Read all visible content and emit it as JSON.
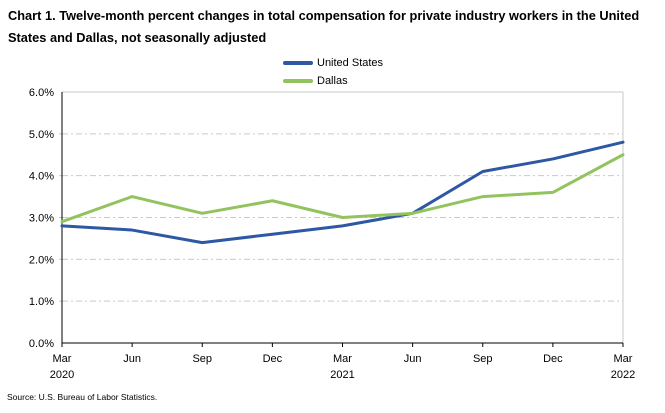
{
  "page": {
    "title": "Chart 1. Twelve-month percent changes in total compensation for private industry workers in the United States and Dallas, not seasonally adjusted",
    "source": "Source: U.S. Bureau of Labor Statistics."
  },
  "colors": {
    "us_line": "#2E58A4",
    "dallas_line": "#92C35E",
    "grid": "#C9C9C9",
    "plot_border": "#C9C9C9",
    "axis": "#000000"
  },
  "chart_data": {
    "type": "line",
    "categories": [
      "Mar",
      "Jun",
      "Sep",
      "Dec",
      "Mar",
      "Jun",
      "Sep",
      "Dec",
      "Mar"
    ],
    "category_years": [
      "2020",
      "",
      "",
      "",
      "2021",
      "",
      "",
      "",
      "2022"
    ],
    "series": [
      {
        "name": "United States",
        "color": "#2E58A4",
        "values": [
          2.8,
          2.7,
          2.4,
          2.6,
          2.8,
          3.1,
          4.1,
          4.4,
          4.8
        ]
      },
      {
        "name": "Dallas",
        "color": "#92C35E",
        "values": [
          2.9,
          3.5,
          3.1,
          3.4,
          3.0,
          3.1,
          3.5,
          3.6,
          4.5
        ]
      }
    ],
    "ylim": [
      0,
      6
    ],
    "ytick_step": 1,
    "ytick_labels": [
      "0.0%",
      "1.0%",
      "2.0%",
      "3.0%",
      "4.0%",
      "5.0%",
      "6.0%"
    ],
    "grid": true,
    "legend_position": "top-center",
    "title": "Chart 1. Twelve-month percent changes in total compensation for private industry workers in the United States and Dallas, not seasonally adjusted",
    "xlabel": "",
    "ylabel": ""
  }
}
